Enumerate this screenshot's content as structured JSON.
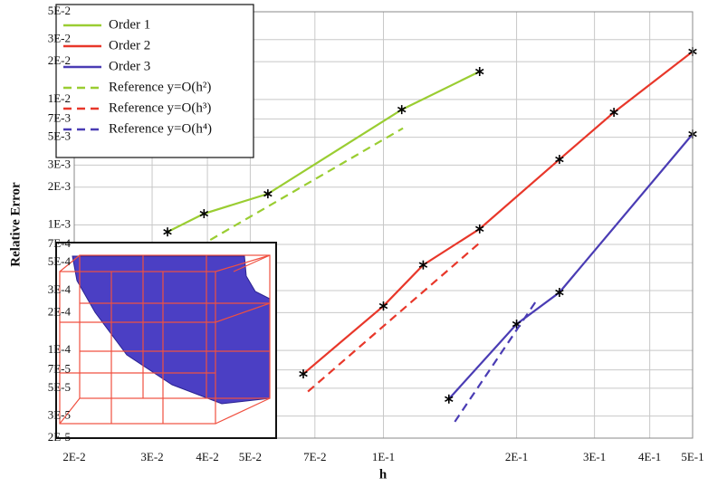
{
  "chart_data": {
    "type": "line",
    "log_x": true,
    "log_y": true,
    "grid": true,
    "legend": "upper left",
    "xlabel": "h",
    "ylabel": "Relative Error",
    "xlim": [
      0.02,
      0.5
    ],
    "xticks": [
      {
        "value": 0.02,
        "label": "2E-2"
      },
      {
        "value": 0.03,
        "label": "3E-2"
      },
      {
        "value": 0.04,
        "label": "4E-2"
      },
      {
        "value": 0.05,
        "label": "5E-2"
      },
      {
        "value": 0.07,
        "label": "7E-2"
      },
      {
        "value": 0.1,
        "label": "1E-1"
      },
      {
        "value": 0.2,
        "label": "2E-1"
      },
      {
        "value": 0.3,
        "label": "3E-1"
      },
      {
        "value": 0.4,
        "label": "4E-1"
      },
      {
        "value": 0.5,
        "label": "5E-1"
      }
    ],
    "ylim": [
      2e-05,
      0.05
    ],
    "yticks": [
      {
        "value": 2e-05,
        "label": "2E-5"
      },
      {
        "value": 3e-05,
        "label": "3E-5"
      },
      {
        "value": 5e-05,
        "label": "5E-5"
      },
      {
        "value": 7e-05,
        "label": "7E-5"
      },
      {
        "value": 0.0001,
        "label": "1E-4"
      },
      {
        "value": 0.0002,
        "label": "2E-4"
      },
      {
        "value": 0.0003,
        "label": "3E-4"
      },
      {
        "value": 0.0005,
        "label": "5E-4"
      },
      {
        "value": 0.0007,
        "label": "7E-4"
      },
      {
        "value": 0.001,
        "label": "1E-3"
      },
      {
        "value": 0.002,
        "label": "2E-3"
      },
      {
        "value": 0.003,
        "label": "3E-3"
      },
      {
        "value": 0.005,
        "label": "5E-3"
      },
      {
        "value": 0.007,
        "label": "7E-3"
      },
      {
        "value": 0.01,
        "label": "1E-2"
      },
      {
        "value": 0.02,
        "label": "2E-2"
      },
      {
        "value": 0.03,
        "label": "3E-2"
      },
      {
        "value": 0.05,
        "label": "5E-2"
      }
    ],
    "series": [
      {
        "name": "Order 1",
        "color": "#9acd32",
        "dashed": false,
        "markers": true,
        "x": [
          0.0325,
          0.0393,
          0.0548,
          0.11,
          0.165
        ],
        "values": [
          0.00088,
          0.00123,
          0.00177,
          0.0083,
          0.0167
        ]
      },
      {
        "name": "Order 2",
        "color": "#e8372a",
        "dashed": false,
        "markers": true,
        "x": [
          0.0659,
          0.1,
          0.123,
          0.165,
          0.25,
          0.332,
          0.5
        ],
        "values": [
          6.5e-05,
          0.000226,
          0.00048,
          0.00093,
          0.00333,
          0.0079,
          0.0241
        ]
      },
      {
        "name": "Order 3",
        "color": "#4a3cb4",
        "dashed": false,
        "markers": true,
        "x": [
          0.1406,
          0.2,
          0.25,
          0.5
        ],
        "values": [
          4.1e-05,
          0.000162,
          0.00029,
          0.0053
        ]
      },
      {
        "name": "Reference y=O(h²)",
        "color": "#9acd32",
        "dashed": true,
        "markers": false,
        "x": [
          0.0406,
          0.1107
        ],
        "values": [
          0.00076,
          0.0059
        ]
      },
      {
        "name": "Reference y=O(h³)",
        "color": "#e8372a",
        "dashed": true,
        "markers": false,
        "x": [
          0.0675,
          0.165
        ],
        "values": [
          4.7e-05,
          0.00072
        ]
      },
      {
        "name": "Reference y=O(h⁴)",
        "color": "#4a3cb4",
        "dashed": true,
        "markers": false,
        "x": [
          0.145,
          0.221
        ],
        "values": [
          2.7e-05,
          0.000245
        ]
      }
    ]
  }
}
